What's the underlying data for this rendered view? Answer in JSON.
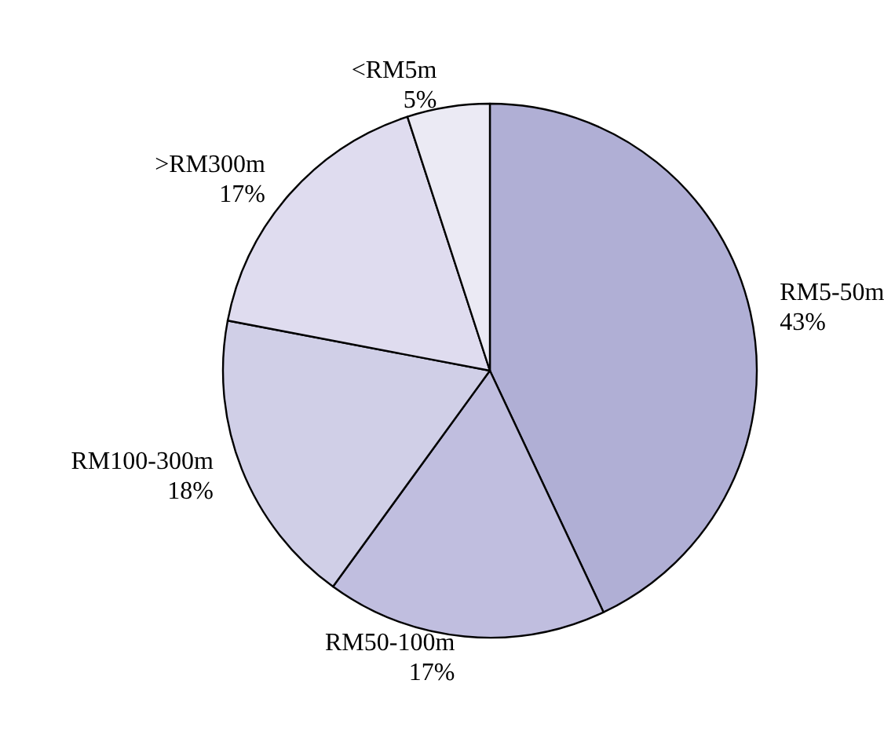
{
  "chart_data": {
    "type": "pie",
    "categories": [
      "RM5-50m",
      "RM50-100m",
      "RM100-300m",
      ">RM300m",
      "<RM5m"
    ],
    "values": [
      43,
      17,
      18,
      17,
      5
    ],
    "value_labels": [
      "43%",
      "17%",
      "18%",
      "17%",
      "5%"
    ],
    "colors": [
      "#b0afd5",
      "#c0bedf",
      "#d0cfe7",
      "#dfdcef",
      "#ebeaf4"
    ]
  }
}
